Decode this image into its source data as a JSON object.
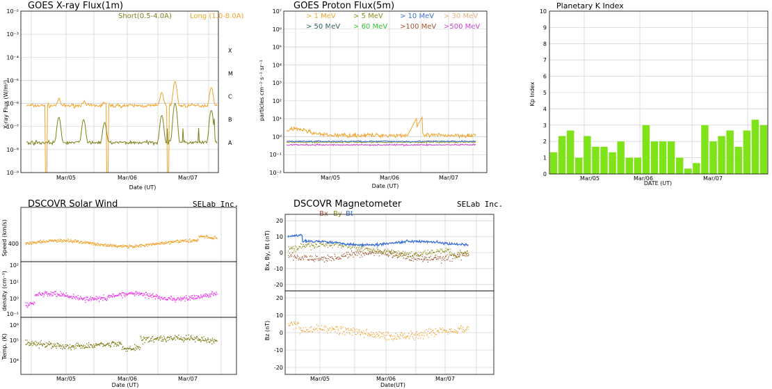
{
  "colors": {
    "short": "#7f7f1a",
    "long": "#f0a22a",
    "p1": "#f0a22a",
    "p5": "#8c8c19",
    "p10": "#3a6fd8",
    "p30": "#e0b080",
    "p50": "#2f5f5f",
    "p60": "#33c233",
    "p100": "#a0522d",
    "p500": "#cc44cc",
    "kp": "#7fe31a",
    "speed": "#f0a22a",
    "density": "#ee33ee",
    "temp": "#7f7f1a",
    "bx": "#a0522d",
    "by": "#8c8c19",
    "bt": "#3a6fd8",
    "bz": "#f0a22a"
  },
  "chart_data": [
    {
      "id": "xray",
      "type": "line",
      "title": "GOES X-ray Flux(1m)",
      "xlabel": "Date (UT)",
      "ylabel": "X-ray Flux (W/m²)",
      "y_scale": "log",
      "ylim": [
        1e-09,
        0.01
      ],
      "ytick_labels": [
        "10⁻⁹",
        "10⁻⁸",
        "10⁻⁷",
        "10⁻⁶",
        "10⁻⁵",
        "10⁻⁴",
        "10⁻³",
        "10⁻²"
      ],
      "xtick_labels": [
        "Mar/05",
        "Mar/06",
        "Mar/07"
      ],
      "class_labels": [
        "A",
        "B",
        "C",
        "M",
        "X"
      ],
      "series": [
        {
          "name": "Short(0.5-4.0A)",
          "color_key": "short",
          "baseline": 2e-08,
          "peaks": [
            2.5e-07,
            2e-07,
            1.5e-07,
            3e-07,
            1e-06,
            5e-07
          ]
        },
        {
          "name": "Long (1.0-8.0A)",
          "color_key": "long",
          "baseline": 8e-07,
          "peaks": [
            1.5e-06,
            1.2e-06,
            1.1e-06,
            3e-06,
            9e-06,
            5e-06
          ]
        }
      ]
    },
    {
      "id": "proton",
      "type": "line",
      "title": "GOES Proton Flux(5m)",
      "ylabel": "particles cm⁻² s⁻¹ sr⁻¹",
      "y_scale": "log",
      "ylim": [
        0.01,
        10000000.0
      ],
      "ytick_labels": [
        "10⁻²",
        "10⁻¹",
        "10⁰",
        "10¹",
        "10²",
        "10³",
        "10⁴",
        "10⁵",
        "10⁶",
        "10⁷"
      ],
      "xtick_labels": [
        "Mar/05",
        "Mar/06",
        "Mar/07"
      ],
      "legend": [
        {
          "label": "> 1 MeV",
          "color_key": "p1"
        },
        {
          "label": "> 5 MeV",
          "color_key": "p5"
        },
        {
          "label": "> 10 MeV",
          "color_key": "p10"
        },
        {
          "label": "> 30 MeV",
          "color_key": "p30"
        },
        {
          "label": "> 50 MeV",
          "color_key": "p50"
        },
        {
          "label": "> 60 MeV",
          "color_key": "p60"
        },
        {
          "label": ">100 MeV",
          "color_key": "p100"
        },
        {
          "label": ">500 MeV",
          "color_key": "p500"
        }
      ],
      "series": [
        {
          "name": "> 1 MeV",
          "level": 1.2,
          "peak": 30
        },
        {
          "name": "> 5 MeV",
          "level": 0.5
        },
        {
          "name": "> 10 MeV",
          "level": 0.55
        },
        {
          "name": "> 500 MeV",
          "level": 0.35
        }
      ]
    },
    {
      "id": "kp",
      "type": "bar",
      "title": "Planetary K Index",
      "xlabel": "DATE (UT)",
      "ylabel": "Kp Index",
      "ylim": [
        0,
        10
      ],
      "ytick_labels": [
        "0",
        "1",
        "2",
        "3",
        "4",
        "5",
        "6",
        "7",
        "8",
        "9",
        "10"
      ],
      "xtick_labels": [
        "Mar/05",
        "Mar/06",
        "Mar/07"
      ],
      "values": [
        1.33,
        2.33,
        2.67,
        1.0,
        2.33,
        1.67,
        1.67,
        1.33,
        2.0,
        1.0,
        1.0,
        3.0,
        2.0,
        2.0,
        2.0,
        1.0,
        0.33,
        0.67,
        3.0,
        2.0,
        2.33,
        2.67,
        1.67,
        2.67,
        3.33,
        3.0
      ]
    },
    {
      "id": "wind",
      "type": "scatter",
      "title": "DSCOVR Solar Wind",
      "brand": "SELab Inc.",
      "xlabel": "Date (UT)",
      "xtick_labels": [
        "Mar/05",
        "Mar/06",
        "Mar/07"
      ],
      "panels": [
        {
          "ylabel": "Speed (km/s)",
          "ytick_labels": [
            "400"
          ],
          "ylim": [
            200,
            650
          ],
          "level": 410,
          "color_key": "speed"
        },
        {
          "ylabel": "density (cm⁻³)",
          "ytick_labels": [
            "10⁻¹",
            "10⁰",
            "10¹",
            "10²"
          ],
          "ylim_log": [
            0.1,
            100
          ],
          "level": 3,
          "color_key": "density"
        },
        {
          "ylabel": "Temp. (K)",
          "ytick_labels": [
            "10⁴",
            "10⁵",
            "10⁶"
          ],
          "ylim_log": [
            5000,
            1000000
          ],
          "level": 100000,
          "color_key": "temp"
        }
      ]
    },
    {
      "id": "mag",
      "type": "scatter",
      "title": "DSCOVR Magnetometer",
      "brand": "SELab Inc.",
      "xlabel": "Date(UT)",
      "xtick_labels": [
        "Mar/05",
        "Mar/06",
        "Mar/07"
      ],
      "legend": [
        {
          "label": "Bx",
          "color_key": "bx"
        },
        {
          "label": "By",
          "color_key": "by"
        },
        {
          "label": "Bt",
          "color_key": "bt"
        }
      ],
      "panels": [
        {
          "ylabel": "Bx, By, Bt (nT)",
          "ytick_labels": [
            "20",
            "10",
            "0",
            "-10",
            "-20"
          ],
          "ylim": [
            -24,
            24
          ],
          "series": [
            {
              "name": "Bt",
              "level": 6
            },
            {
              "name": "By",
              "level": 2
            },
            {
              "name": "Bx",
              "level": -2
            }
          ]
        },
        {
          "ylabel": "Bz (nT)",
          "ytick_labels": [
            "20",
            "10",
            "0",
            "-10",
            "-20"
          ],
          "ylim": [
            -24,
            24
          ],
          "series": [
            {
              "name": "Bz",
              "level": 0
            }
          ]
        }
      ]
    }
  ]
}
